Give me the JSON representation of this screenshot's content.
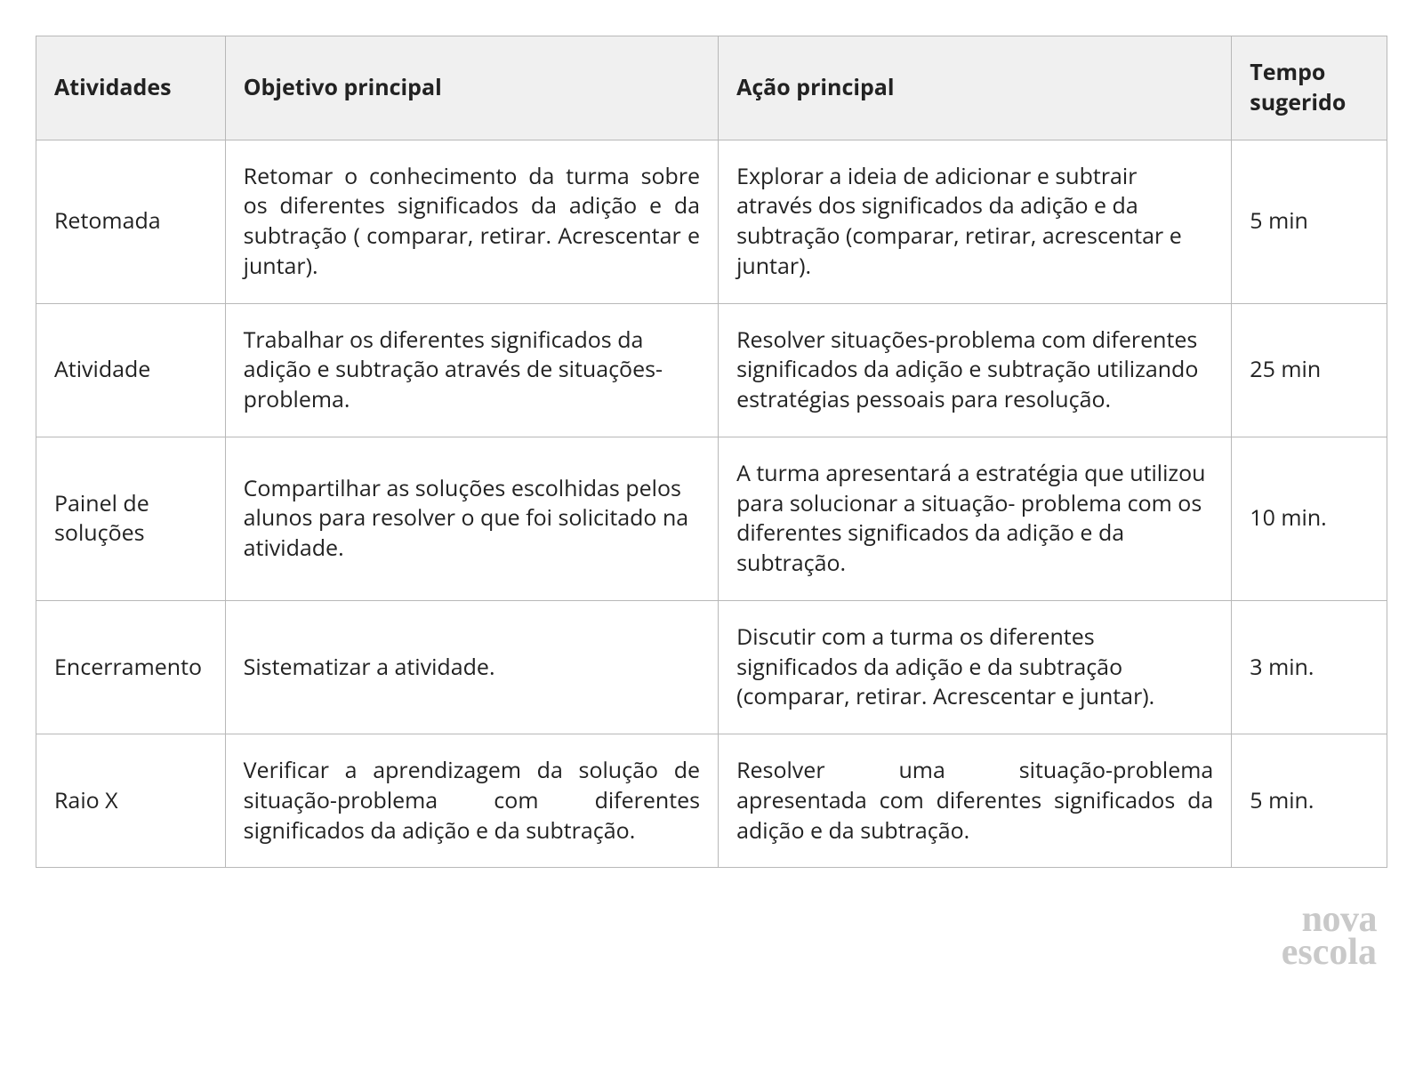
{
  "table": {
    "border_color": "#b8b8b8",
    "header_bg": "#f0f0f0",
    "text_color": "#222222",
    "font_size_pt": 19,
    "columns": [
      {
        "label": "Atividades",
        "width_pct": 14
      },
      {
        "label": "Objetivo principal",
        "width_pct": 36.5
      },
      {
        "label": "Ação principal",
        "width_pct": 38
      },
      {
        "label": "Tempo sugerido",
        "width_pct": 11.5
      }
    ],
    "rows": [
      {
        "atividade": "Retomada",
        "objetivo": "Retomar o conhecimento da turma sobre os diferentes significados da adição e da subtração ( comparar, retirar. Acrescentar e juntar).",
        "objetivo_justify": true,
        "acao": "Explorar a ideia de adicionar e subtrair através dos significados da adição e da subtração (comparar, retirar, acrescentar e juntar).",
        "acao_justify": false,
        "tempo": "5 min"
      },
      {
        "atividade": "Atividade",
        "objetivo": "Trabalhar os diferentes significados da adição e subtração através de situações-problema.",
        "objetivo_justify": false,
        "acao": "Resolver situações-problema com diferentes significados da adição e subtração  utilizando estratégias pessoais para resolução.",
        "acao_justify": false,
        "tempo": "25 min"
      },
      {
        "atividade": "Painel de soluções",
        "objetivo": "Compartilhar as soluções escolhidas pelos alunos para resolver o que foi solicitado na atividade.",
        "objetivo_justify": false,
        "acao": "A turma apresentará a estratégia que utilizou para solucionar a situação- problema com os diferentes significados da adição e da subtração.",
        "acao_justify": false,
        "tempo": "10  min."
      },
      {
        "atividade": "Encerramento",
        "objetivo": "Sistematizar a atividade.",
        "objetivo_justify": false,
        "acao": "Discutir com a turma os diferentes significados da adição e da subtração (comparar, retirar. Acrescentar e juntar).",
        "acao_justify": false,
        "tempo": "3  min."
      },
      {
        "atividade": "Raio X",
        "objetivo": "Verificar a aprendizagem da solução de situação-problema com diferentes significados da adição e da subtração.",
        "objetivo_justify": true,
        "acao": "Resolver uma situação-problema apresentada com diferentes significados da adição e da subtração.",
        "acao_justify": true,
        "tempo": "5 min."
      }
    ]
  },
  "logo": {
    "line1": "nova",
    "line2": "escola",
    "color": "#c9c9c9",
    "font_size_pt": 31
  }
}
